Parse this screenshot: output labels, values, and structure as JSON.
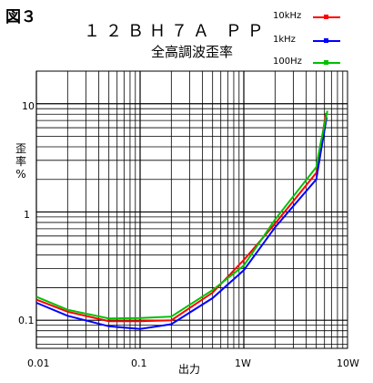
{
  "figure_label": "図３",
  "chart_data": {
    "type": "line",
    "title": "１２ＢＨ７Ａ ＰＰ",
    "subtitle": "全高調波歪率",
    "xlabel": "出力",
    "ylabel": "歪率\n%",
    "xscale": "log",
    "yscale": "log",
    "xlim": [
      0.01,
      10
    ],
    "ylim": [
      0.055,
      20
    ],
    "x_tick_labels": [
      "0.01",
      "0.1",
      "1W",
      "10W"
    ],
    "y_tick_labels": [
      "10",
      "1",
      "0.1"
    ],
    "grid": true,
    "legend_position": "top-right",
    "series": [
      {
        "name": "10kHz",
        "color": "#ff0000",
        "points": [
          [
            0.01,
            0.155
          ],
          [
            0.02,
            0.12
          ],
          [
            0.05,
            0.098
          ],
          [
            0.1,
            0.098
          ],
          [
            0.2,
            0.1
          ],
          [
            0.5,
            0.18
          ],
          [
            1.0,
            0.36
          ],
          [
            2.0,
            0.78
          ],
          [
            5.0,
            2.3
          ],
          [
            5.5,
            4.0
          ],
          [
            6.2,
            8.2
          ]
        ]
      },
      {
        "name": "1kHz",
        "color": "#0000ff",
        "points": [
          [
            0.01,
            0.145
          ],
          [
            0.02,
            0.11
          ],
          [
            0.05,
            0.088
          ],
          [
            0.1,
            0.083
          ],
          [
            0.2,
            0.092
          ],
          [
            0.5,
            0.16
          ],
          [
            1.0,
            0.29
          ],
          [
            2.0,
            0.72
          ],
          [
            5.0,
            2.0
          ],
          [
            5.5,
            3.5
          ],
          [
            6.3,
            7.5
          ]
        ]
      },
      {
        "name": "100Hz",
        "color": "#00c000",
        "points": [
          [
            0.01,
            0.165
          ],
          [
            0.02,
            0.125
          ],
          [
            0.05,
            0.104
          ],
          [
            0.1,
            0.105
          ],
          [
            0.2,
            0.108
          ],
          [
            0.5,
            0.19
          ],
          [
            1.0,
            0.32
          ],
          [
            2.0,
            0.85
          ],
          [
            5.0,
            2.6
          ],
          [
            5.5,
            4.3
          ],
          [
            6.4,
            8.6
          ]
        ]
      }
    ]
  }
}
